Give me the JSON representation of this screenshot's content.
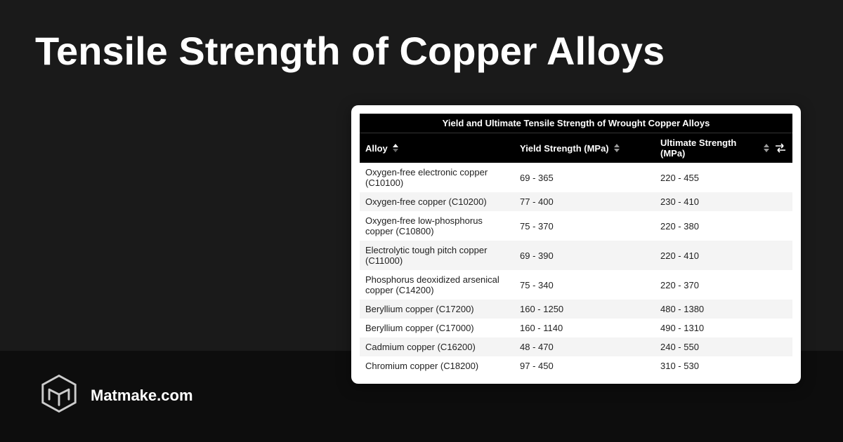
{
  "colors": {
    "page_bg": "#1a1a1a",
    "footer_bg": "#0d0d0d",
    "card_bg": "#ffffff",
    "table_header_bg": "#000000",
    "table_header_text": "#ffffff",
    "row_alt_bg": "#f4f4f4",
    "text": "#222222",
    "title_text": "#ffffff"
  },
  "title": "Tensile Strength of Copper Alloys",
  "brand": "Matmake.com",
  "table": {
    "caption": "Yield and Ultimate Tensile Strength of Wrought Copper Alloys",
    "columns": {
      "alloy": "Alloy",
      "yield": "Yield Strength (MPa)",
      "ultimate": "Ultimate Strength (MPa)"
    },
    "rows": [
      {
        "alloy": "Oxygen-free electronic copper (C10100)",
        "yield": "69 - 365",
        "ultimate": "220 - 455"
      },
      {
        "alloy": "Oxygen-free copper (C10200)",
        "yield": "77 - 400",
        "ultimate": "230 - 410"
      },
      {
        "alloy": "Oxygen-free low-phosphorus copper (C10800)",
        "yield": "75 - 370",
        "ultimate": "220 - 380"
      },
      {
        "alloy": "Electrolytic tough pitch copper (C11000)",
        "yield": "69 - 390",
        "ultimate": "220 - 410"
      },
      {
        "alloy": "Phosphorus deoxidized arsenical copper (C14200)",
        "yield": "75 - 340",
        "ultimate": "220 - 370"
      },
      {
        "alloy": "Beryllium copper (C17200)",
        "yield": "160 - 1250",
        "ultimate": "480 - 1380"
      },
      {
        "alloy": "Beryllium copper (C17000)",
        "yield": "160 - 1140",
        "ultimate": "490 - 1310"
      },
      {
        "alloy": "Cadmium copper (C16200)",
        "yield": "48 - 470",
        "ultimate": "240 - 550"
      },
      {
        "alloy": "Chromium copper (C18200)",
        "yield": "97 - 450",
        "ultimate": "310 - 530"
      }
    ]
  }
}
